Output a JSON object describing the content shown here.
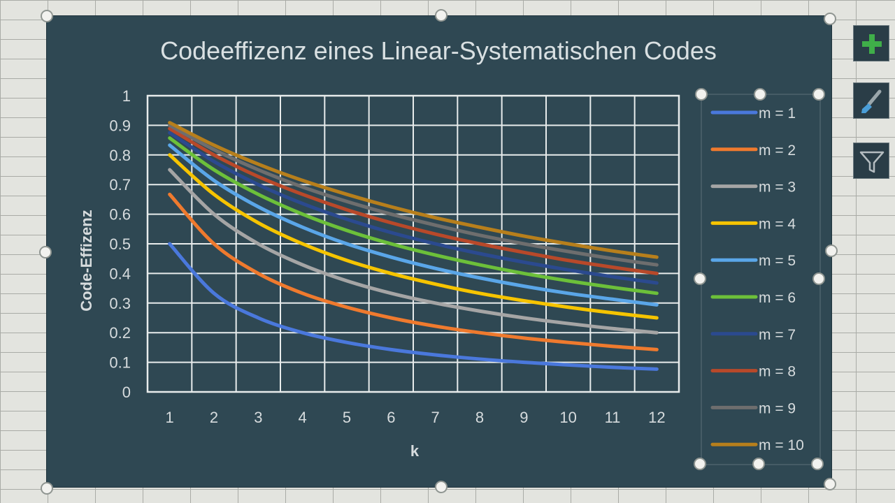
{
  "chart_data": {
    "type": "line",
    "title": "Codeeffizenz eines Linear-Systematischen Codes",
    "xlabel": "k",
    "ylabel": "Code-Effizenz",
    "x": [
      1,
      2,
      3,
      4,
      5,
      6,
      7,
      8,
      9,
      10,
      11,
      12
    ],
    "ylim": [
      0,
      1
    ],
    "y_ticks": [
      "0",
      "0.1",
      "0.2",
      "0.3",
      "0.4",
      "0.5",
      "0.6",
      "0.7",
      "0.8",
      "0.9",
      "1"
    ],
    "x_ticks": [
      "1",
      "2",
      "3",
      "4",
      "5",
      "6",
      "7",
      "8",
      "9",
      "10",
      "11",
      "12"
    ],
    "grid": true,
    "legend_position": "right",
    "series": [
      {
        "name": "m = 1",
        "color": "#4a78dc",
        "values": [
          0.5,
          0.333,
          0.25,
          0.2,
          0.167,
          0.143,
          0.125,
          0.111,
          0.1,
          0.091,
          0.083,
          0.077
        ]
      },
      {
        "name": "m = 2",
        "color": "#ef7a2e",
        "values": [
          0.667,
          0.5,
          0.4,
          0.333,
          0.286,
          0.25,
          0.222,
          0.2,
          0.182,
          0.167,
          0.154,
          0.143
        ]
      },
      {
        "name": "m = 3",
        "color": "#a5a5a5",
        "values": [
          0.75,
          0.6,
          0.5,
          0.429,
          0.375,
          0.333,
          0.3,
          0.273,
          0.25,
          0.231,
          0.214,
          0.2
        ]
      },
      {
        "name": "m = 4",
        "color": "#f6c400",
        "values": [
          0.8,
          0.667,
          0.571,
          0.5,
          0.444,
          0.4,
          0.364,
          0.333,
          0.308,
          0.286,
          0.267,
          0.25
        ]
      },
      {
        "name": "m = 5",
        "color": "#5aa6e8",
        "values": [
          0.833,
          0.714,
          0.625,
          0.556,
          0.5,
          0.455,
          0.417,
          0.385,
          0.357,
          0.333,
          0.313,
          0.294
        ]
      },
      {
        "name": "m = 6",
        "color": "#6cc03a",
        "values": [
          0.857,
          0.75,
          0.667,
          0.6,
          0.545,
          0.5,
          0.462,
          0.429,
          0.4,
          0.375,
          0.353,
          0.333
        ]
      },
      {
        "name": "m = 7",
        "color": "#2b4a8f",
        "values": [
          0.875,
          0.778,
          0.7,
          0.636,
          0.583,
          0.538,
          0.5,
          0.467,
          0.438,
          0.412,
          0.389,
          0.368
        ]
      },
      {
        "name": "m = 8",
        "color": "#b8492a",
        "values": [
          0.889,
          0.8,
          0.727,
          0.667,
          0.615,
          0.571,
          0.533,
          0.5,
          0.471,
          0.444,
          0.421,
          0.4
        ]
      },
      {
        "name": "m = 9",
        "color": "#6e6e6e",
        "values": [
          0.9,
          0.818,
          0.75,
          0.692,
          0.643,
          0.6,
          0.563,
          0.529,
          0.5,
          0.474,
          0.45,
          0.429
        ]
      },
      {
        "name": "m = 10",
        "color": "#b77f1c",
        "values": [
          0.909,
          0.833,
          0.769,
          0.714,
          0.667,
          0.625,
          0.588,
          0.556,
          0.526,
          0.5,
          0.476,
          0.455
        ]
      }
    ]
  },
  "toolbar": {
    "add_element_icon": "plus-icon",
    "style_icon": "brush-icon",
    "filter_icon": "filter-icon",
    "accent_color": "#3fae49"
  }
}
